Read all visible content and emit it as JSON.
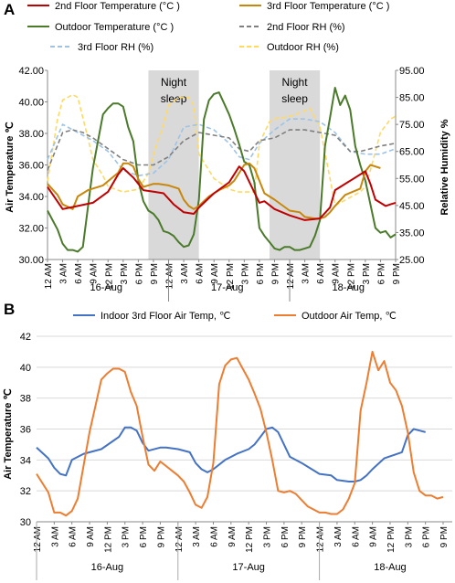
{
  "panel_labels": {
    "a": "A",
    "b": "B"
  },
  "colors": {
    "floor2_temp": "#c00000",
    "floor3_temp": "#c8860a",
    "outdoor_temp": "#4a7a2a",
    "floor2_rh": "#7f7f7f",
    "floor3_rh": "#9dc3e6",
    "outdoor_rh": "#ffd966",
    "night_band": "#d9d9d9",
    "indoor_b": "#4472c4",
    "outdoor_b": "#ed7d31"
  },
  "chart_data": [
    {
      "type": "line",
      "panel": "A",
      "title": "",
      "ylabel": "Air Temperature ℃",
      "y2label": "Relative Humidity %",
      "ylim": [
        30,
        42
      ],
      "y2lim": [
        25,
        95
      ],
      "yticks": [
        "30.00",
        "32.00",
        "34.00",
        "36.00",
        "38.00",
        "40.00",
        "42.00"
      ],
      "y2ticks": [
        "25.00",
        "35.00",
        "45.00",
        "55.00",
        "65.00",
        "75.00",
        "85.00",
        "95.00"
      ],
      "x_tick_labels": [
        "12 AM",
        "3 AM",
        "6 AM",
        "9 AM",
        "12 PM",
        "3 PM",
        "6 PM",
        "9 PM",
        "12 AM",
        "3 AM",
        "6 AM",
        "9 AM",
        "12 PM",
        "3 PM",
        "6 PM",
        "9 PM",
        "12 AM",
        "3 AM",
        "6 AM",
        "9 AM",
        "12 PM",
        "3 PM",
        "6 PM",
        "9 PM"
      ],
      "day_labels": [
        "16-Aug",
        "17-Aug",
        "18-Aug"
      ],
      "x_start_hour": 0,
      "x_end_hour": 69,
      "annotations": [
        {
          "text": [
            "Night",
            "sleep"
          ],
          "x_from_hour": 20,
          "x_to_hour": 30
        },
        {
          "text": [
            "Night",
            "sleep"
          ],
          "x_from_hour": 44,
          "x_to_hour": 54
        }
      ],
      "legend": [
        "2nd Floor Temperature  (°C )",
        "3rd Floor Temperature  (°C )",
        "Outdoor Temperature  (°C )",
        "2nd Floor RH   (%)",
        "3rd Floor RH   (%)",
        "Outdoor RH   (%)"
      ],
      "series": [
        {
          "name": "2nd Floor Temperature  (°C )",
          "axis": "left",
          "x": [
            0,
            3,
            6,
            9,
            12,
            14,
            15,
            17,
            19,
            21,
            23,
            25,
            27,
            29,
            30,
            33,
            36,
            38,
            39,
            42,
            43,
            45,
            48,
            51,
            54,
            56,
            57,
            60,
            63,
            64,
            65,
            66,
            67,
            68,
            69
          ],
          "y": [
            34.6,
            33.2,
            33.4,
            33.6,
            34.3,
            35.4,
            35.8,
            35.2,
            34.4,
            34.3,
            34.2,
            33.5,
            33.0,
            32.9,
            33.3,
            34.2,
            34.9,
            35.9,
            35.6,
            33.6,
            33.7,
            33.2,
            32.8,
            32.5,
            32.6,
            33.3,
            34.4,
            35.0,
            35.6,
            34.8,
            33.8,
            33.6,
            33.4,
            33.5,
            33.6
          ]
        },
        {
          "name": "3rd Floor Temperature  (°C )",
          "axis": "left",
          "x": [
            0,
            2,
            3,
            5,
            6,
            8,
            11,
            14,
            15,
            16,
            17,
            18,
            19,
            21,
            22,
            24,
            26,
            27,
            28,
            29,
            30,
            32,
            34,
            36,
            37,
            38,
            39,
            40,
            41,
            43,
            45,
            48,
            50,
            51,
            53,
            54,
            55,
            56,
            57,
            59,
            62,
            63,
            64,
            65,
            66
          ],
          "y": [
            34.8,
            34.1,
            33.5,
            33.2,
            34.0,
            34.4,
            34.7,
            35.5,
            36.1,
            36.1,
            35.9,
            35.1,
            34.6,
            34.8,
            34.8,
            34.7,
            34.5,
            33.8,
            33.4,
            33.2,
            33.4,
            34.0,
            34.4,
            34.7,
            35.0,
            35.5,
            36.0,
            36.1,
            35.8,
            34.2,
            33.8,
            33.1,
            33.0,
            32.7,
            32.6,
            32.6,
            32.7,
            33.0,
            33.4,
            34.1,
            34.5,
            35.6,
            36.0,
            35.9,
            35.8
          ]
        },
        {
          "name": "Outdoor Temperature  (°C )",
          "axis": "left",
          "x": [
            0,
            2,
            3,
            4,
            5,
            6,
            7,
            9,
            10,
            11,
            12,
            13,
            14,
            15,
            16,
            17,
            18,
            19,
            20,
            21,
            22,
            23,
            24,
            25,
            26,
            27,
            28,
            29,
            30,
            31,
            32,
            33,
            34,
            35,
            36,
            37,
            38,
            39,
            40,
            41,
            42,
            43,
            44,
            45,
            46,
            47,
            48,
            49,
            50,
            51,
            52,
            53,
            54,
            55,
            56,
            57,
            58,
            59,
            60,
            61,
            62,
            63,
            64,
            65,
            66,
            67,
            68,
            69
          ],
          "y": [
            33.1,
            31.9,
            31.0,
            30.6,
            30.6,
            30.5,
            30.8,
            35.8,
            37.5,
            39.2,
            39.6,
            39.9,
            39.9,
            39.7,
            38.4,
            37.5,
            35.0,
            33.7,
            33.1,
            32.9,
            32.5,
            31.8,
            31.7,
            31.5,
            31.1,
            30.8,
            30.9,
            31.6,
            33.8,
            38.9,
            40.1,
            40.5,
            40.6,
            39.9,
            39.2,
            38.3,
            37.3,
            36.2,
            36.0,
            34.9,
            32.0,
            31.5,
            31.1,
            30.7,
            30.6,
            30.8,
            30.8,
            30.6,
            30.6,
            30.7,
            30.8,
            31.5,
            32.5,
            37.2,
            39.0,
            40.9,
            39.8,
            40.4,
            39.5,
            37.2,
            36.0,
            35.0,
            33.5,
            32.0,
            31.7,
            31.8,
            31.4,
            31.6
          ]
        },
        {
          "name": "2nd Floor RH   (%)",
          "axis": "right",
          "x": [
            0,
            3,
            5,
            7,
            9,
            12,
            15,
            18,
            21,
            24,
            27,
            30,
            33,
            36,
            38,
            40,
            42,
            45,
            48,
            51,
            54,
            57,
            60,
            62,
            64,
            66,
            69
          ],
          "y": [
            58,
            72,
            73,
            72,
            70,
            66,
            62,
            60,
            60,
            63,
            69,
            72,
            71,
            70,
            66,
            65,
            69,
            70,
            73,
            73,
            72,
            71,
            65,
            65,
            66,
            67,
            68
          ]
        },
        {
          "name": "3rd Floor RH   (%)",
          "axis": "right",
          "x": [
            0,
            3,
            5,
            7,
            9,
            12,
            15,
            18,
            21,
            24,
            27,
            30,
            33,
            36,
            38,
            40,
            42,
            45,
            48,
            51,
            54,
            57,
            60,
            63,
            66,
            69
          ],
          "y": [
            62,
            75,
            73,
            71,
            69,
            65,
            58,
            56,
            57,
            62,
            74,
            75,
            73,
            68,
            63,
            62,
            68,
            73,
            77,
            77,
            76,
            72,
            65,
            64,
            64,
            66
          ]
        },
        {
          "name": "Outdoor RH   (%)",
          "axis": "right",
          "x": [
            0,
            2,
            3,
            5,
            6,
            8,
            9,
            11,
            12,
            15,
            18,
            20,
            21,
            23,
            24,
            26,
            27,
            28,
            29,
            30,
            33,
            36,
            38,
            41,
            42,
            44,
            45,
            48,
            51,
            52,
            54,
            56,
            57,
            60,
            62,
            63,
            64,
            66,
            68,
            69
          ],
          "y": [
            54,
            77,
            84,
            86,
            85,
            70,
            62,
            56,
            52,
            50,
            51,
            57,
            64,
            75,
            82,
            85,
            85,
            85,
            82,
            64,
            55,
            51,
            50,
            50,
            68,
            76,
            77,
            78,
            80,
            81,
            74,
            55,
            45,
            48,
            50,
            52,
            58,
            72,
            77,
            78
          ]
        }
      ]
    },
    {
      "type": "line",
      "panel": "B",
      "title": "",
      "ylabel": "Air Temperature ℃",
      "xlabel": "",
      "ylim": [
        30,
        42
      ],
      "yticks": [
        "30",
        "32",
        "34",
        "36",
        "38",
        "40",
        "42"
      ],
      "x_tick_labels": [
        "12 AM",
        "3 AM",
        "6 AM",
        "9 AM",
        "12 PM",
        "3 PM",
        "6 PM",
        "9 PM",
        "12 AM",
        "3 AM",
        "6 AM",
        "9 AM",
        "12 PM",
        "3 PM",
        "6 PM",
        "9 PM",
        "12 AM",
        "3 AM",
        "6 AM",
        "9 AM",
        "12 PM",
        "3 PM",
        "6 PM",
        "9 PM"
      ],
      "day_labels": [
        "16-Aug",
        "17-Aug",
        "18-Aug"
      ],
      "x_start_hour": 0,
      "x_end_hour": 69,
      "legend": [
        "Indoor 3rd Floor Air Temp, ℃",
        "Outdoor Air Temp, ℃"
      ],
      "series": [
        {
          "name": "Indoor 3rd Floor Air Temp, ℃",
          "x": [
            0,
            2,
            3,
            4,
            5,
            6,
            8,
            11,
            14,
            15,
            16,
            17,
            18,
            19,
            21,
            22,
            24,
            26,
            27,
            28,
            29,
            30,
            32,
            34,
            36,
            37,
            38,
            39,
            40,
            41,
            43,
            45,
            48,
            50,
            51,
            53,
            54,
            55,
            56,
            57,
            59,
            62,
            63,
            64,
            65,
            66
          ],
          "y": [
            34.8,
            34.1,
            33.5,
            33.1,
            33.0,
            34.0,
            34.4,
            34.7,
            35.5,
            36.1,
            36.1,
            35.9,
            35.1,
            34.6,
            34.8,
            34.8,
            34.7,
            34.5,
            33.8,
            33.4,
            33.2,
            33.4,
            34.0,
            34.4,
            34.7,
            35.0,
            35.5,
            36.0,
            36.1,
            35.8,
            34.2,
            33.8,
            33.1,
            33.0,
            32.7,
            32.6,
            32.6,
            32.7,
            33.0,
            33.4,
            34.1,
            34.5,
            35.6,
            36.0,
            35.9,
            35.8
          ]
        },
        {
          "name": "Outdoor Air Temp, ℃",
          "x": [
            0,
            2,
            3,
            4,
            5,
            6,
            7,
            9,
            10,
            11,
            12,
            13,
            14,
            15,
            16,
            17,
            18,
            19,
            20,
            21,
            22,
            23,
            24,
            25,
            26,
            27,
            28,
            29,
            30,
            31,
            32,
            33,
            34,
            35,
            36,
            37,
            38,
            39,
            40,
            41,
            42,
            43,
            44,
            45,
            46,
            47,
            48,
            49,
            50,
            51,
            52,
            53,
            54,
            55,
            56,
            57,
            58,
            59,
            60,
            61,
            62,
            63,
            64,
            65,
            66,
            67,
            68,
            69
          ],
          "y": [
            33.1,
            31.9,
            30.6,
            30.6,
            30.4,
            30.7,
            31.5,
            35.8,
            37.5,
            39.2,
            39.6,
            39.9,
            39.9,
            39.7,
            38.4,
            37.5,
            35.5,
            33.7,
            33.3,
            33.9,
            33.6,
            33.3,
            33.0,
            32.6,
            31.9,
            31.1,
            30.9,
            31.6,
            33.8,
            38.9,
            40.1,
            40.5,
            40.6,
            39.9,
            39.2,
            38.3,
            37.3,
            35.8,
            34.0,
            32.0,
            31.9,
            32.0,
            31.8,
            31.4,
            31.0,
            30.8,
            30.6,
            30.6,
            30.5,
            30.5,
            30.8,
            31.5,
            32.5,
            37.2,
            39.0,
            41.0,
            39.8,
            40.4,
            39.0,
            38.5,
            37.5,
            35.8,
            33.2,
            32.0,
            31.7,
            31.7,
            31.5,
            31.6
          ]
        }
      ]
    }
  ]
}
